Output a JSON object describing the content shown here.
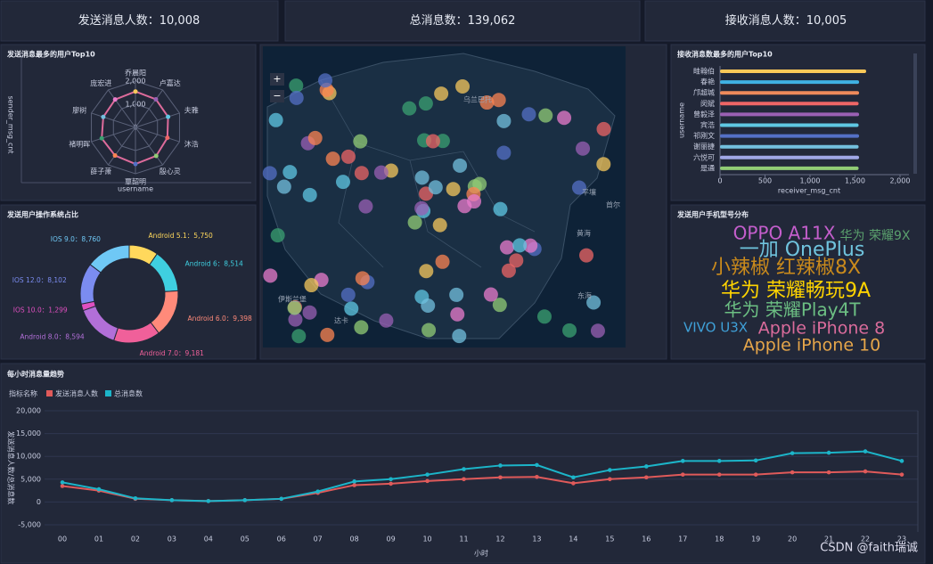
{
  "kpis": [
    {
      "label": "发送消息人数：",
      "value": "10,008"
    },
    {
      "label": "总消息数：",
      "value": "139,062"
    },
    {
      "label": "接收消息人数：",
      "value": "10,005"
    }
  ],
  "map": {
    "zoom_in": "+",
    "zoom_out": "−",
    "labels": [
      "乌兰巴托",
      "平壤",
      "首尔",
      "黄海",
      "东海",
      "达卡",
      "伊斯兰堡"
    ]
  },
  "watermark": "CSDN @faith瑞诚",
  "chart_data": [
    {
      "type": "radar",
      "title": "发送消息最多的用户Top10",
      "y_label": "sender_msg_cnt",
      "x_label": "username",
      "categories": [
        "乔晨阳",
        "卢嘉达",
        "夫雅",
        "沐浩",
        "殷心灵",
        "覃韶明",
        "薛子萧",
        "褚明晖",
        "廖树",
        "庞宏进"
      ],
      "values": [
        1550,
        1500,
        1480,
        1450,
        1520,
        1580,
        1500,
        1530,
        1460,
        1490
      ],
      "color": "#dd6b9b",
      "rlim": [
        0,
        2000
      ],
      "rticks": [
        0,
        {
          "value": 1000,
          "label": "1,000"
        },
        {
          "value": 2000,
          "label": "2,000"
        }
      ]
    },
    {
      "type": "barh",
      "title": "接收消息数最多的用户Top10",
      "y_label": "username",
      "x_label": "receiver_msg_cnt",
      "categories": [
        "畦翰伯",
        "春艳",
        "邝超城",
        "闵斌",
        "曾毅泽",
        "宾浩",
        "祁刚文",
        "谢丽捷",
        "六悦可",
        "是通"
      ],
      "values": [
        1624,
        1545,
        1545,
        1540,
        1545,
        1540,
        1545,
        1540,
        1545,
        1540
      ],
      "colors": [
        "#fac858",
        "#3fb1e3",
        "#ee8a5b",
        "#ee6666",
        "#9a60b4",
        "#5fc7e3",
        "#5470c6",
        "#73c0de",
        "#a0a7e6",
        "#91cc75"
      ],
      "xlim": [
        0,
        2000
      ],
      "xticks": [
        0,
        500,
        {
          "value": 1000,
          "label": "1,000"
        },
        {
          "value": 1500,
          "label": "1,500"
        },
        {
          "value": 2000,
          "label": "2,000"
        }
      ]
    },
    {
      "type": "donut",
      "title": "发送用户操作系统占比",
      "categories": [
        "Android 5.1",
        "Android 6",
        "Android 6.0",
        "Android 7.0",
        "Android 8.0",
        "IOS 10.0",
        "IOS 12.0",
        "IOS 9.0"
      ],
      "values": [
        5750,
        8514,
        9398,
        9181,
        8594,
        1299,
        8102,
        8760
      ],
      "value_labels": [
        "5,750",
        "8,514",
        "9,398",
        "9,181",
        "8,594",
        "1,299",
        "8,102",
        "8,760"
      ],
      "label_separator": "：",
      "colors": [
        "#ffd85c",
        "#3fcfe0",
        "#ff8a7a",
        "#f0609a",
        "#b26fd8",
        "#e04fc0",
        "#7b8cf0",
        "#6fc8f5"
      ]
    },
    {
      "type": "wordcloud",
      "title": "发送用户手机型号分布",
      "words": [
        "OPPO A11X",
        "华为 荣耀9X",
        "一加 OnePlus",
        "小辣椒 红辣椒8X",
        "华为 荣耀畅玩9A",
        "华为 荣耀Play4T",
        "VIVO U3X",
        "Apple iPhone 8",
        "Apple iPhone 10"
      ],
      "values": [
        20,
        14,
        22,
        22,
        22,
        20,
        15,
        19,
        19
      ],
      "colors": [
        "#c45ecc",
        "#5aa06d",
        "#6fc3dd",
        "#c98a1c",
        "#ffd400",
        "#6cbf83",
        "#3fa0d8",
        "#d96b9b",
        "#e6a64a"
      ]
    },
    {
      "type": "line",
      "title": "每小时消息量趋势",
      "legend_title": "指标名称",
      "x_label": "小时",
      "y_label": "发送消息人数/总消息数",
      "categories": [
        "00",
        "01",
        "02",
        "03",
        "04",
        "05",
        "06",
        "07",
        "08",
        "09",
        "10",
        "11",
        "12",
        "13",
        "14",
        "15",
        "16",
        "17",
        "18",
        "19",
        "20",
        "21",
        "22",
        "23"
      ],
      "series": [
        {
          "name": "发送消息人数",
          "color": "#e05a5a",
          "values": [
            3500,
            2500,
            700,
            400,
            200,
            400,
            700,
            2000,
            3700,
            4000,
            4600,
            5000,
            5400,
            5500,
            4100,
            5000,
            5400,
            6000,
            6000,
            6000,
            6500,
            6500,
            6700,
            6000
          ]
        },
        {
          "name": "总消息数",
          "color": "#1cb5c9",
          "values": [
            4300,
            2800,
            800,
            400,
            200,
            400,
            700,
            2300,
            4500,
            5000,
            6000,
            7200,
            8000,
            8100,
            5400,
            7000,
            7800,
            9000,
            9000,
            9100,
            10700,
            10800,
            11100,
            9000
          ]
        }
      ],
      "ylim": [
        -5000,
        20000
      ],
      "yticks": [
        {
          "value": -5000,
          "label": "-5,000"
        },
        0,
        {
          "value": 5000,
          "label": "5,000"
        },
        {
          "value": 10000,
          "label": "10,000"
        },
        {
          "value": 15000,
          "label": "15,000"
        },
        {
          "value": 20000,
          "label": "20,000"
        }
      ],
      "grid": true
    }
  ]
}
